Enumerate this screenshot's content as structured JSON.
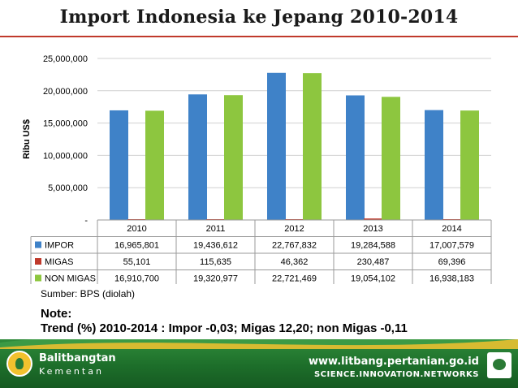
{
  "title": "Import Indonesia ke Jepang 2010-2014",
  "chart_data": {
    "type": "bar",
    "categories": [
      "2010",
      "2011",
      "2012",
      "2013",
      "2014"
    ],
    "series": [
      {
        "name": "IMPOR",
        "values": [
          16965801,
          19436612,
          22767832,
          19284588,
          17007579
        ],
        "color": "#3f82c8"
      },
      {
        "name": "MIGAS",
        "values": [
          55101,
          115635,
          46362,
          230487,
          69396
        ],
        "color": "#c0392b"
      },
      {
        "name": "NON MIGAS",
        "values": [
          16910700,
          19320977,
          22721469,
          19054102,
          16938183
        ],
        "color": "#8dc63f"
      }
    ],
    "ylabel": "Ribu US$",
    "ylim": [
      0,
      25000000
    ],
    "yticks": [
      {
        "value": 0,
        "label": "-"
      },
      {
        "value": 5000000,
        "label": "5,000,000"
      },
      {
        "value": 10000000,
        "label": "10,000,000"
      },
      {
        "value": 15000000,
        "label": "15,000,000"
      },
      {
        "value": 20000000,
        "label": "20,000,000"
      },
      {
        "value": 25000000,
        "label": "25,000,000"
      }
    ],
    "grid": true,
    "legend": "data-table-below",
    "table": [
      {
        "series": "IMPOR",
        "cells": [
          "16,965,801",
          "19,436,612",
          "22,767,832",
          "19,284,588",
          "17,007,579"
        ]
      },
      {
        "series": "MIGAS",
        "cells": [
          "55,101",
          "115,635",
          "46,362",
          "230,487",
          "69,396"
        ]
      },
      {
        "series": "NON MIGAS",
        "cells": [
          "16,910,700",
          "19,320,977",
          "22,721,469",
          "19,054,102",
          "16,938,183"
        ]
      }
    ]
  },
  "source": "Sumber: BPS (diolah)",
  "note": {
    "heading": "Note:",
    "text": "Trend (%) 2010-2014 : Impor -0,03; Migas 12,20; non Migas -0,11"
  },
  "footer": {
    "brand": "Balitbangtan",
    "brand_sub": "Kementan",
    "website": "www.litbang.pertanian.go.id",
    "tagline": "SCIENCE.INNOVATION.NETWORKS",
    "logo_icon": "balitbangtan-logo-icon",
    "badge_icon": "kementan-badge-icon"
  }
}
